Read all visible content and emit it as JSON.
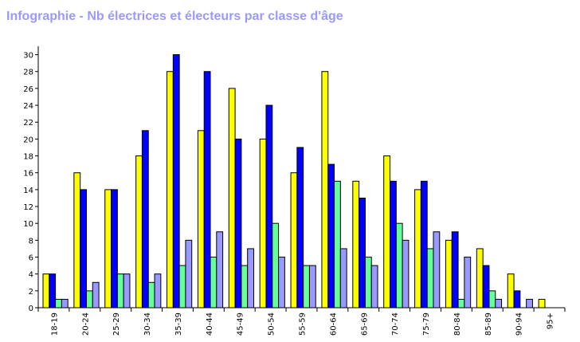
{
  "title": "Infographie - Nb électrices et électeurs par classe d'âge",
  "colors": {
    "series1": "#ffff00",
    "series2": "#0000ff",
    "series3": "#66ff99",
    "series4": "#9999ff",
    "title": "#9999ff"
  },
  "chart_data": {
    "type": "bar",
    "title": "Infographie - Nb électrices et électeurs par classe d'âge",
    "xlabel": "",
    "ylabel": "",
    "ylim": [
      0,
      31
    ],
    "yticks": [
      0,
      2,
      4,
      6,
      8,
      10,
      12,
      14,
      16,
      18,
      20,
      22,
      24,
      26,
      28,
      30
    ],
    "grid": false,
    "legend": "none",
    "categories": [
      "18-19",
      "20-24",
      "25-29",
      "30-34",
      "35-39",
      "40-44",
      "45-49",
      "50-54",
      "55-59",
      "60-64",
      "65-69",
      "70-74",
      "75-79",
      "80-84",
      "85-89",
      "90-94",
      "95+"
    ],
    "series": [
      {
        "color": "#ffff00",
        "values": [
          4,
          16,
          14,
          18,
          28,
          21,
          26,
          20,
          16,
          28,
          15,
          18,
          14,
          8,
          7,
          4,
          1
        ]
      },
      {
        "color": "#0000ff",
        "values": [
          4,
          14,
          14,
          21,
          30,
          28,
          20,
          24,
          19,
          17,
          13,
          15,
          15,
          9,
          5,
          2,
          0
        ]
      },
      {
        "color": "#66ff99",
        "values": [
          1,
          2,
          4,
          3,
          5,
          6,
          5,
          10,
          5,
          15,
          6,
          10,
          7,
          1,
          2,
          0,
          0
        ]
      },
      {
        "color": "#9999ff",
        "values": [
          1,
          3,
          4,
          4,
          8,
          9,
          7,
          6,
          5,
          7,
          5,
          8,
          9,
          6,
          1,
          1,
          0
        ]
      }
    ]
  }
}
